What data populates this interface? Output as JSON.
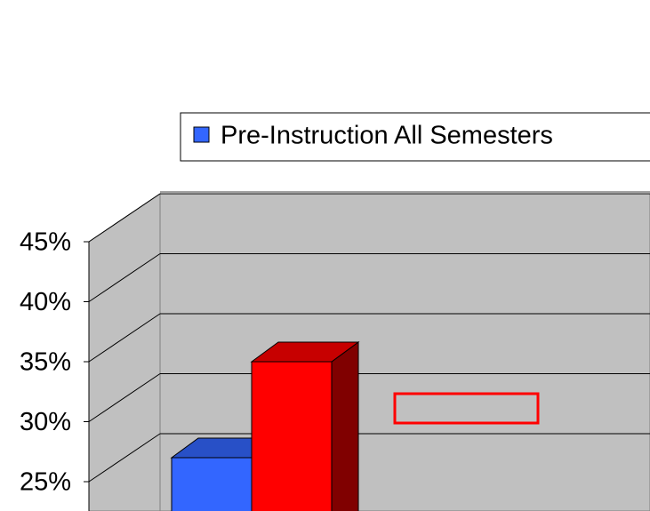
{
  "chart_data": {
    "type": "bar",
    "categories": [
      null
    ],
    "series": [
      {
        "name": "Pre-Instruction All Semesters",
        "color": "#3366ff",
        "values": [
          27
        ]
      },
      {
        "color": "#ff0000",
        "values": [
          35
        ]
      }
    ],
    "ylim": [
      23,
      45
    ],
    "yticks": [
      {
        "value": 25,
        "label": "25%"
      },
      {
        "value": 30,
        "label": "30%"
      },
      {
        "value": 35,
        "label": "35%"
      },
      {
        "value": 40,
        "label": "40%"
      },
      {
        "value": 45,
        "label": "45%"
      }
    ],
    "grid": true
  }
}
